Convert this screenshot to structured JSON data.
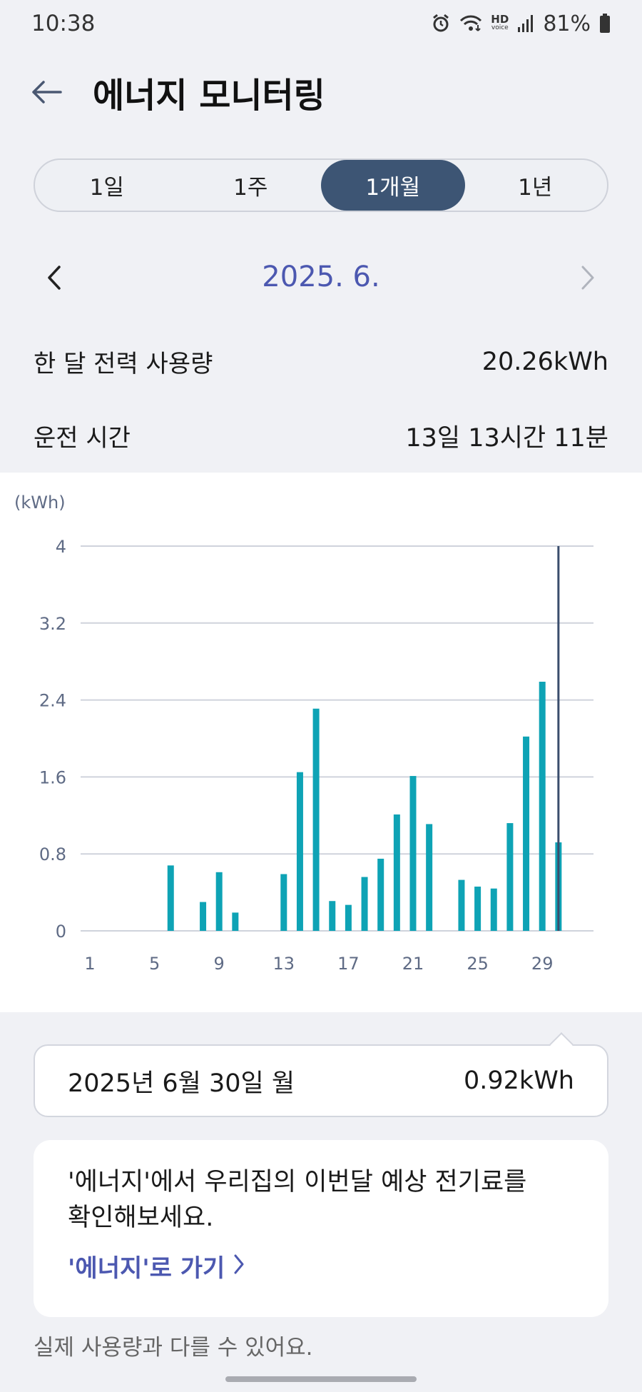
{
  "status": {
    "time": "10:38",
    "battery": "81%",
    "hd_label": "HD",
    "voice_label": "voice",
    "icons": [
      "alarm-icon",
      "wifi-icon",
      "hd-voice-icon",
      "signal-icon",
      "battery-icon"
    ]
  },
  "header": {
    "title": "에너지 모니터링",
    "back_icon": "arrow-left-icon"
  },
  "tabs": [
    {
      "label": "1일",
      "active": false
    },
    {
      "label": "1주",
      "active": false
    },
    {
      "label": "1개월",
      "active": true
    },
    {
      "label": "1년",
      "active": false
    }
  ],
  "period": {
    "label": "2025. 6.",
    "prev_icon": "chevron-left-icon",
    "next_icon": "chevron-right-icon"
  },
  "stats": {
    "usage_label": "한 달 전력 사용량",
    "usage_value": "20.26kWh",
    "runtime_label": "운전 시간",
    "runtime_value": "13일 13시간 11분"
  },
  "chart_data": {
    "type": "bar",
    "ylabel": "(kWh)",
    "ylim": [
      0,
      4
    ],
    "yticks": [
      "0",
      "0.8",
      "1.6",
      "2.4",
      "3.2",
      "4"
    ],
    "xtick_labels": [
      "1",
      "5",
      "9",
      "13",
      "17",
      "21",
      "25",
      "29"
    ],
    "xticks": [
      1,
      5,
      9,
      13,
      17,
      21,
      25,
      29
    ],
    "grid": true,
    "x": [
      1,
      2,
      3,
      4,
      5,
      6,
      7,
      8,
      9,
      10,
      11,
      12,
      13,
      14,
      15,
      16,
      17,
      18,
      19,
      20,
      21,
      22,
      23,
      24,
      25,
      26,
      27,
      28,
      29,
      30
    ],
    "values": [
      0,
      0,
      0,
      0,
      0,
      0.68,
      0,
      0.3,
      0.61,
      0.19,
      0,
      0,
      0.59,
      1.65,
      2.31,
      0.31,
      0.27,
      0.56,
      0.75,
      1.21,
      1.61,
      1.11,
      0,
      0.53,
      0.46,
      0.44,
      1.12,
      2.02,
      2.59,
      0.92
    ],
    "selected_day": 30,
    "colors": {
      "bar": "#0ea3b5",
      "grid": "#cfd3dc",
      "axis_text": "#5f6b85",
      "selected_line": "#3a4d6c"
    }
  },
  "tooltip": {
    "date": "2025년 6월 30일 월",
    "value": "0.92kWh"
  },
  "promo": {
    "text": "'에너지'에서 우리집의 이번달 예상 전기료를 확인해보세요.",
    "link": "'에너지'로 가기",
    "link_icon": "chevron-right-icon"
  },
  "disclaimer": "실제 사용량과 다를 수 있어요.",
  "colors": {
    "accent": "#4c58b0",
    "tab_active": "#3d5574",
    "background": "#f0f1f5"
  }
}
